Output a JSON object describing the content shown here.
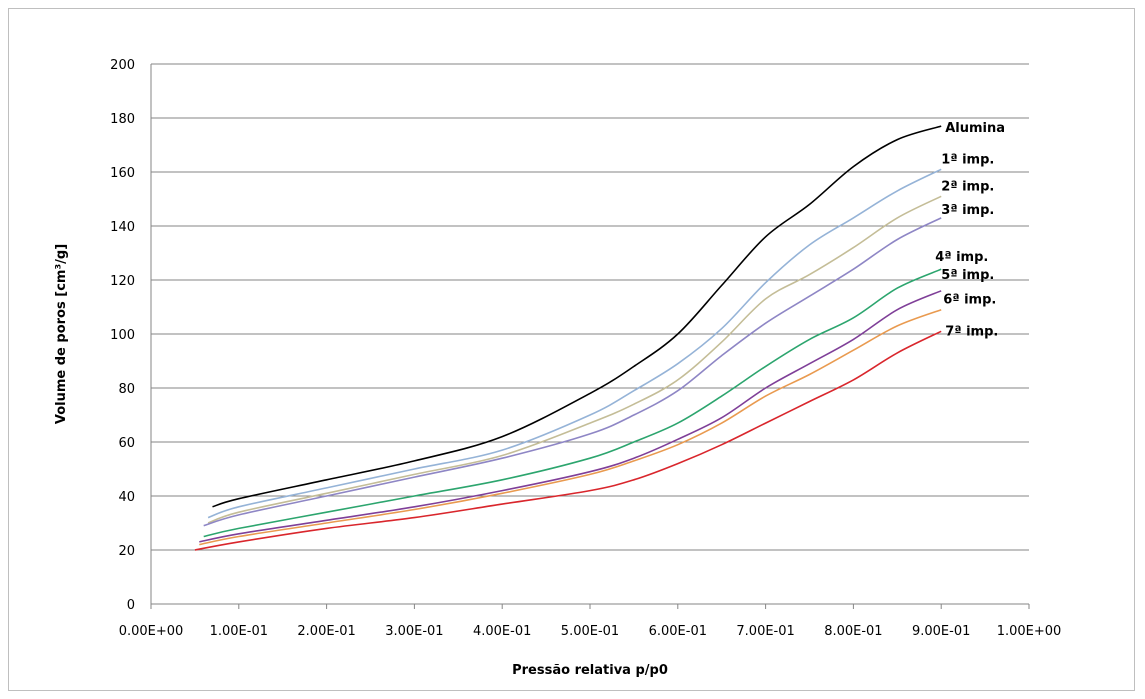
{
  "chart_data": {
    "type": "line",
    "xlabel": "Pressão relativa p/p0",
    "ylabel": "Volume de poros [cm³/g]",
    "xlim": [
      0,
      1
    ],
    "ylim": [
      0,
      200
    ],
    "x_ticks": [
      0,
      0.1,
      0.2,
      0.3,
      0.4,
      0.5,
      0.6,
      0.7,
      0.8,
      0.9,
      1.0
    ],
    "x_tick_labels": [
      "0.00E+00",
      "1.00E-01",
      "2.00E-01",
      "3.00E-01",
      "4.00E-01",
      "5.00E-01",
      "6.00E-01",
      "7.00E-01",
      "8.00E-01",
      "9.00E-01",
      "1.00E+00"
    ],
    "y_ticks": [
      0,
      20,
      40,
      60,
      80,
      100,
      120,
      140,
      160,
      180,
      200
    ],
    "grid": "horizontal",
    "legend": "none (series labeled at line ends)",
    "series": [
      {
        "name": "Alumina",
        "color": "#000000",
        "x": [
          0.07,
          0.1,
          0.2,
          0.3,
          0.4,
          0.5,
          0.55,
          0.6,
          0.65,
          0.7,
          0.75,
          0.8,
          0.85,
          0.9
        ],
        "y": [
          36,
          39,
          46,
          53,
          62,
          78,
          88,
          100,
          118,
          136,
          148,
          162,
          172,
          177
        ]
      },
      {
        "name": "1ª imp.",
        "color": "#95b3d7",
        "x": [
          0.065,
          0.1,
          0.2,
          0.3,
          0.4,
          0.5,
          0.55,
          0.6,
          0.65,
          0.7,
          0.75,
          0.8,
          0.85,
          0.9
        ],
        "y": [
          32,
          36,
          43,
          50,
          57,
          70,
          79,
          89,
          102,
          119,
          133,
          143,
          153,
          161
        ]
      },
      {
        "name": "2ª imp.",
        "color": "#c4bd97",
        "x": [
          0.065,
          0.1,
          0.2,
          0.3,
          0.4,
          0.5,
          0.55,
          0.6,
          0.65,
          0.7,
          0.75,
          0.8,
          0.85,
          0.9
        ],
        "y": [
          30,
          34,
          41,
          48,
          55,
          67,
          74,
          83,
          97,
          113,
          122,
          132,
          143,
          151
        ]
      },
      {
        "name": "3ª imp.",
        "color": "#8e86c5",
        "x": [
          0.06,
          0.1,
          0.2,
          0.3,
          0.4,
          0.5,
          0.55,
          0.6,
          0.65,
          0.7,
          0.75,
          0.8,
          0.85,
          0.9
        ],
        "y": [
          29,
          33,
          40,
          47,
          54,
          63,
          70,
          79,
          92,
          104,
          114,
          124,
          135,
          143
        ]
      },
      {
        "name": "4ª imp.",
        "color": "#2ca56e",
        "x": [
          0.06,
          0.1,
          0.2,
          0.3,
          0.4,
          0.5,
          0.55,
          0.6,
          0.65,
          0.7,
          0.75,
          0.8,
          0.85,
          0.9
        ],
        "y": [
          25,
          28,
          34,
          40,
          46,
          54,
          60,
          67,
          77,
          88,
          98,
          106,
          117,
          124
        ]
      },
      {
        "name": "5ª imp.",
        "color": "#7f3f98",
        "x": [
          0.055,
          0.1,
          0.2,
          0.3,
          0.4,
          0.5,
          0.55,
          0.6,
          0.65,
          0.7,
          0.75,
          0.8,
          0.85,
          0.9
        ],
        "y": [
          23,
          26,
          31,
          36,
          42,
          49,
          54,
          61,
          69,
          80,
          89,
          98,
          109,
          116
        ]
      },
      {
        "name": "6ª imp.",
        "color": "#e99a4f",
        "x": [
          0.055,
          0.1,
          0.2,
          0.3,
          0.4,
          0.5,
          0.55,
          0.6,
          0.65,
          0.7,
          0.75,
          0.8,
          0.85,
          0.9
        ],
        "y": [
          22,
          25,
          30,
          35,
          41,
          48,
          53,
          59,
          67,
          77,
          85,
          94,
          103,
          109
        ]
      },
      {
        "name": "7ª imp.",
        "color": "#d9262c",
        "x": [
          0.05,
          0.1,
          0.2,
          0.3,
          0.4,
          0.5,
          0.55,
          0.6,
          0.65,
          0.7,
          0.75,
          0.8,
          0.85,
          0.9
        ],
        "y": [
          20,
          23,
          28,
          32,
          37,
          42,
          46,
          52,
          59,
          67,
          75,
          83,
          93,
          101
        ]
      }
    ]
  }
}
